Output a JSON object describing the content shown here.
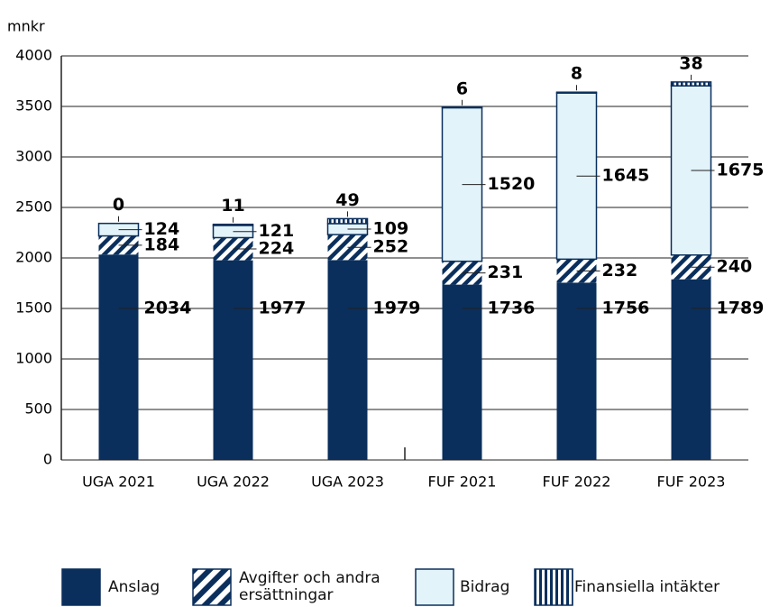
{
  "chart_data": {
    "type": "stacked_bar",
    "ylabel": "mnkr",
    "categories": [
      "UGA 2021",
      "UGA 2022",
      "UGA 2023",
      "FUF 2021",
      "FUF 2022",
      "FUF 2023"
    ],
    "series": [
      {
        "name": "Anslag",
        "color": "#0a2f5c",
        "pattern": "solid",
        "values": [
          2034,
          1977,
          1979,
          1736,
          1756,
          1789
        ]
      },
      {
        "name": "Avgifter och andra ersättningar",
        "color": "#0a2f5c",
        "pattern": "diagonal",
        "values": [
          184,
          224,
          252,
          231,
          232,
          240
        ]
      },
      {
        "name": "Bidrag",
        "color": "#e2f3f9",
        "pattern": "outlined",
        "values": [
          124,
          121,
          109,
          1520,
          1645,
          1675
        ]
      },
      {
        "name": "Finansiella intäkter",
        "color": "#0a2f5c",
        "pattern": "vertical",
        "values": [
          0,
          11,
          49,
          6,
          8,
          38
        ]
      }
    ],
    "ylim": [
      0,
      4000
    ],
    "yticks": [
      0,
      500,
      1000,
      1500,
      2000,
      2500,
      3000,
      3500,
      4000
    ],
    "grid": true
  }
}
